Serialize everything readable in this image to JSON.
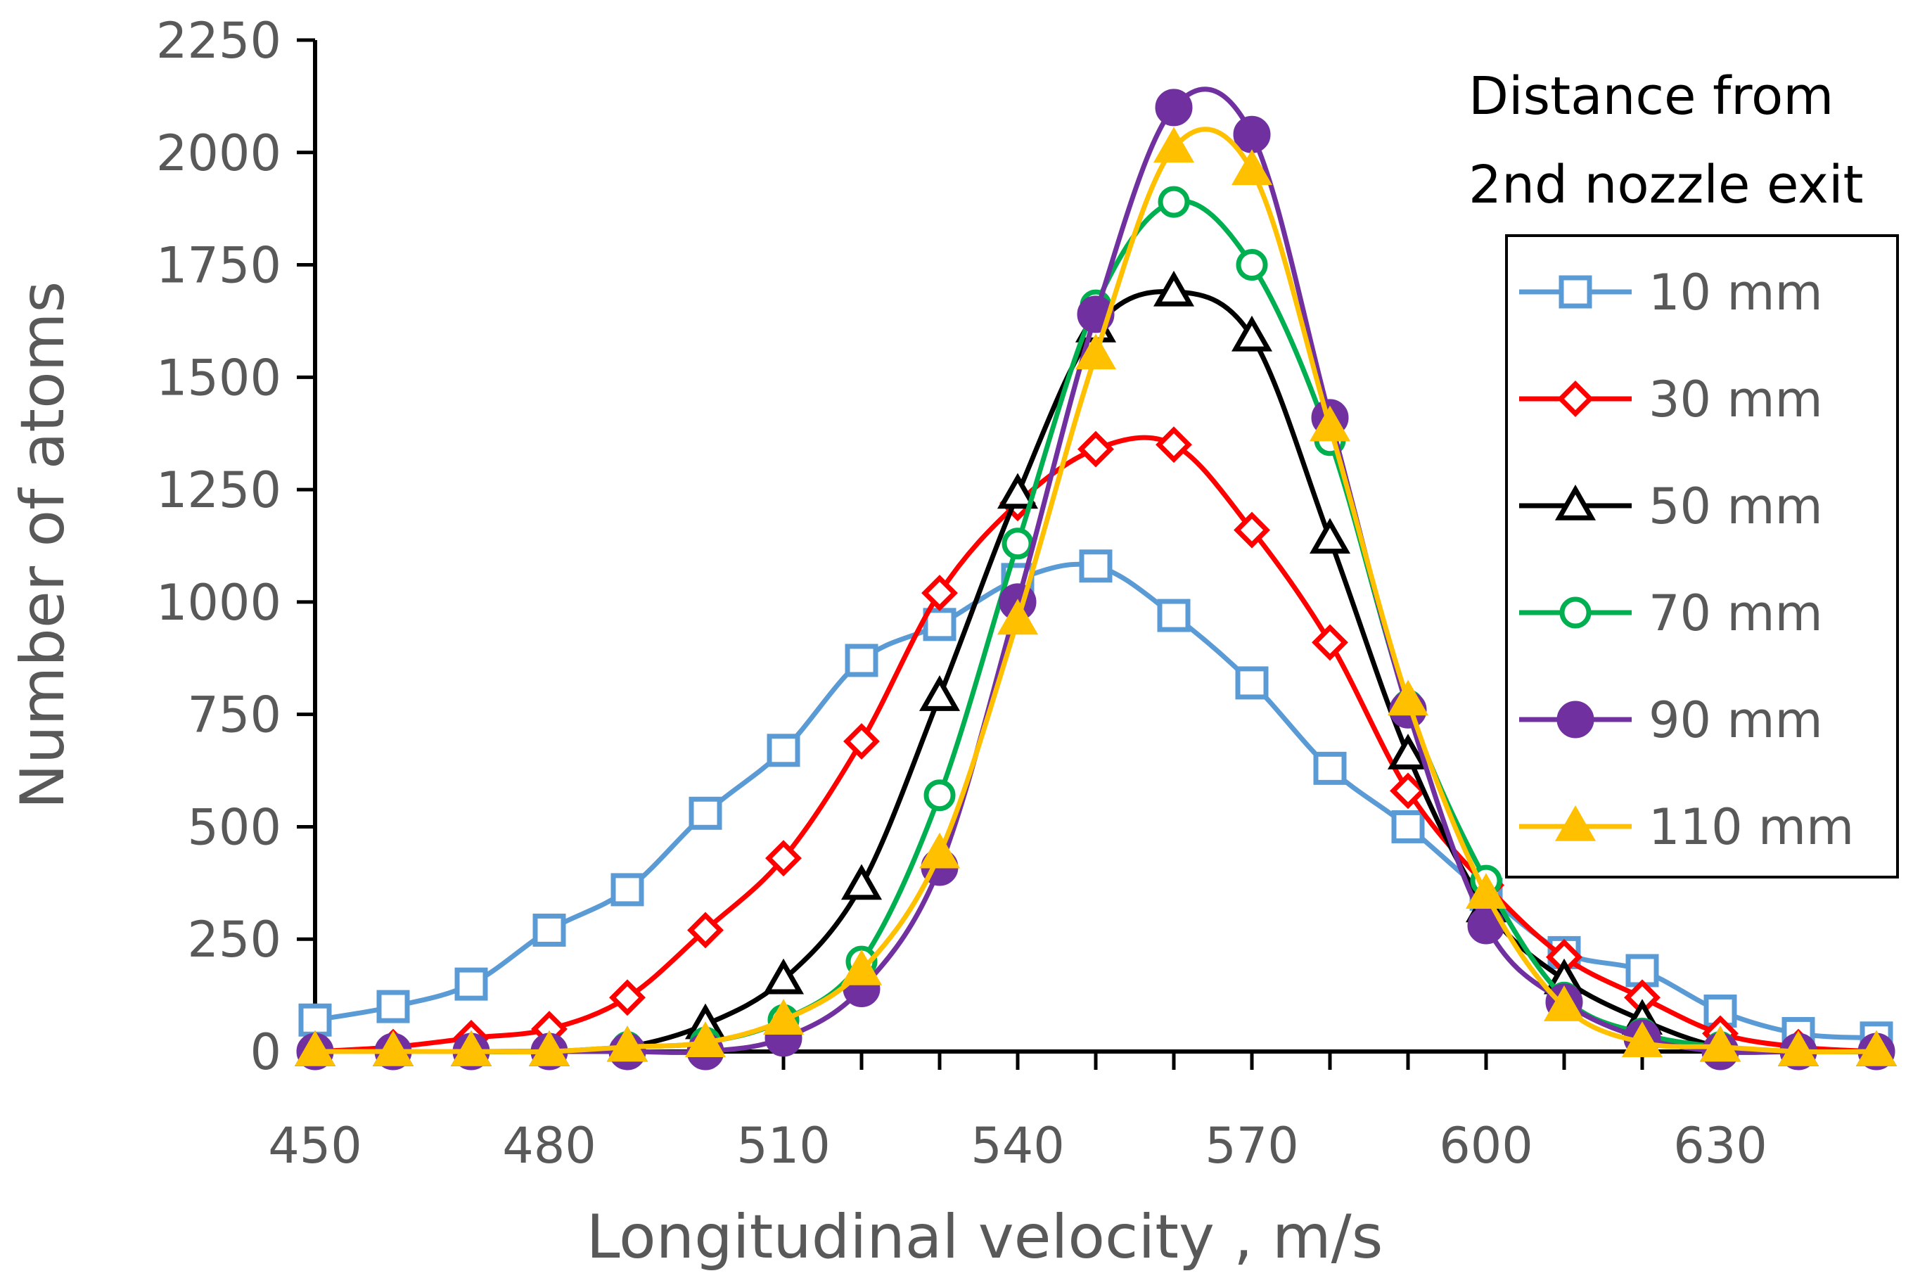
{
  "chart_data": {
    "type": "line",
    "xlabel": "Longitudinal velocity ,  m/s",
    "ylabel": "Number of atoms",
    "xlim": [
      450,
      650
    ],
    "ylim": [
      0,
      2250
    ],
    "x_ticks": [
      450,
      480,
      510,
      540,
      570,
      600,
      630
    ],
    "y_ticks": [
      0,
      250,
      500,
      750,
      1000,
      1250,
      1500,
      1750,
      2000,
      2250
    ],
    "grid": false,
    "smooth": true,
    "legend_title": [
      "Distance from",
      "2nd nozzle exit"
    ],
    "legend_position": "right",
    "x": [
      450,
      460,
      470,
      480,
      490,
      500,
      510,
      520,
      530,
      540,
      550,
      560,
      570,
      580,
      590,
      600,
      610,
      620,
      630,
      640,
      650
    ],
    "series": [
      {
        "name": "10 mm",
        "color": "#5B9BD5",
        "marker": "open-square",
        "values": [
          70,
          100,
          150,
          270,
          360,
          530,
          670,
          870,
          950,
          1050,
          1080,
          970,
          820,
          630,
          500,
          350,
          220,
          180,
          90,
          40,
          30
        ]
      },
      {
        "name": "30 mm",
        "color": "#FF0000",
        "marker": "open-diamond",
        "values": [
          0,
          10,
          30,
          50,
          120,
          270,
          430,
          690,
          1020,
          1220,
          1340,
          1350,
          1160,
          910,
          580,
          370,
          210,
          120,
          40,
          10,
          0
        ]
      },
      {
        "name": "50 mm",
        "color": "#000000",
        "marker": "open-triangle",
        "values": [
          0,
          0,
          0,
          0,
          10,
          60,
          160,
          370,
          790,
          1240,
          1610,
          1690,
          1590,
          1140,
          660,
          320,
          160,
          70,
          10,
          0,
          0
        ]
      },
      {
        "name": "70 mm",
        "color": "#00B050",
        "marker": "open-circle",
        "values": [
          0,
          0,
          0,
          0,
          10,
          20,
          70,
          200,
          570,
          1130,
          1660,
          1890,
          1750,
          1360,
          770,
          380,
          120,
          40,
          10,
          0,
          0
        ]
      },
      {
        "name": "90 mm",
        "color": "#7030A0",
        "marker": "filled-circle",
        "values": [
          0,
          0,
          0,
          0,
          0,
          0,
          30,
          140,
          410,
          1000,
          1640,
          2100,
          2040,
          1410,
          760,
          280,
          110,
          30,
          0,
          0,
          0
        ]
      },
      {
        "name": "110 mm",
        "color": "#FFC000",
        "marker": "filled-triangle",
        "values": [
          0,
          0,
          0,
          0,
          10,
          20,
          70,
          180,
          440,
          960,
          1550,
          2010,
          1960,
          1390,
          780,
          350,
          100,
          20,
          10,
          0,
          0
        ]
      }
    ]
  }
}
